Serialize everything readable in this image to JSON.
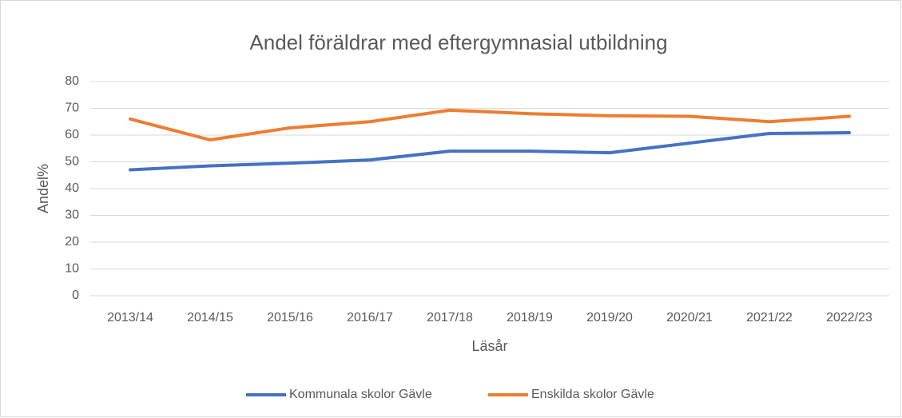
{
  "chart_data": {
    "type": "line",
    "title": "Andel föräldrar med eftergymnasial utbildning",
    "x_label": "Läsår",
    "y_label": "Andel%",
    "categories": [
      "2013/14",
      "2014/15",
      "2015/16",
      "2016/17",
      "2017/18",
      "2018/19",
      "2019/20",
      "2020/21",
      "2021/22",
      "2022/23"
    ],
    "series": [
      {
        "name": "Kommunala skolor Gävle",
        "color": "#4472c4",
        "values": [
          47,
          48.5,
          49.5,
          50.7,
          54,
          54,
          53.4,
          57,
          60.6,
          60.9
        ]
      },
      {
        "name": "Enskilda skolor Gävle",
        "color": "#ed7d31",
        "values": [
          66,
          58.2,
          62.7,
          65,
          69.3,
          68,
          67.2,
          67,
          65,
          67
        ]
      }
    ],
    "ylim": [
      0,
      80
    ],
    "yticks": [
      0,
      10,
      20,
      30,
      40,
      50,
      60,
      70,
      80
    ],
    "grid": true,
    "legend": "bottom"
  }
}
